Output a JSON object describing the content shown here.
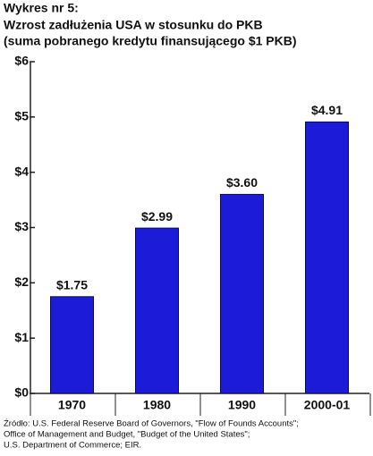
{
  "chart_data": {
    "type": "bar",
    "title": "Wykres nr 5:",
    "subtitle": [
      "Wzrost zadłużenia USA w stosunku do PKB",
      "(suma pobranego kredytu finansującego $1 PKB)"
    ],
    "categories": [
      "1970",
      "1980",
      "1990",
      "2000-01"
    ],
    "values": [
      1.75,
      2.99,
      3.6,
      4.91
    ],
    "value_labels": [
      "$1.75",
      "$2.99",
      "$3.60",
      "$4.91"
    ],
    "color": "#1c1cd8",
    "ylim": [
      0,
      6
    ],
    "yticks": [
      {
        "value": 0,
        "label": "$0"
      },
      {
        "value": 1,
        "label": "$1"
      },
      {
        "value": 2,
        "label": "$2"
      },
      {
        "value": 3,
        "label": "$3"
      },
      {
        "value": 4,
        "label": "$4"
      },
      {
        "value": 5,
        "label": "$5"
      },
      {
        "value": 6,
        "label": "$6"
      }
    ],
    "grid": false,
    "source": [
      "Źródło: U.S. Federal Reserve Board of Governors, \"Flow of Founds Accounts\";",
      "Office of Management and Budget, \"Budget of the United States\";",
      "U.S. Department of Commerce; EIR."
    ]
  }
}
